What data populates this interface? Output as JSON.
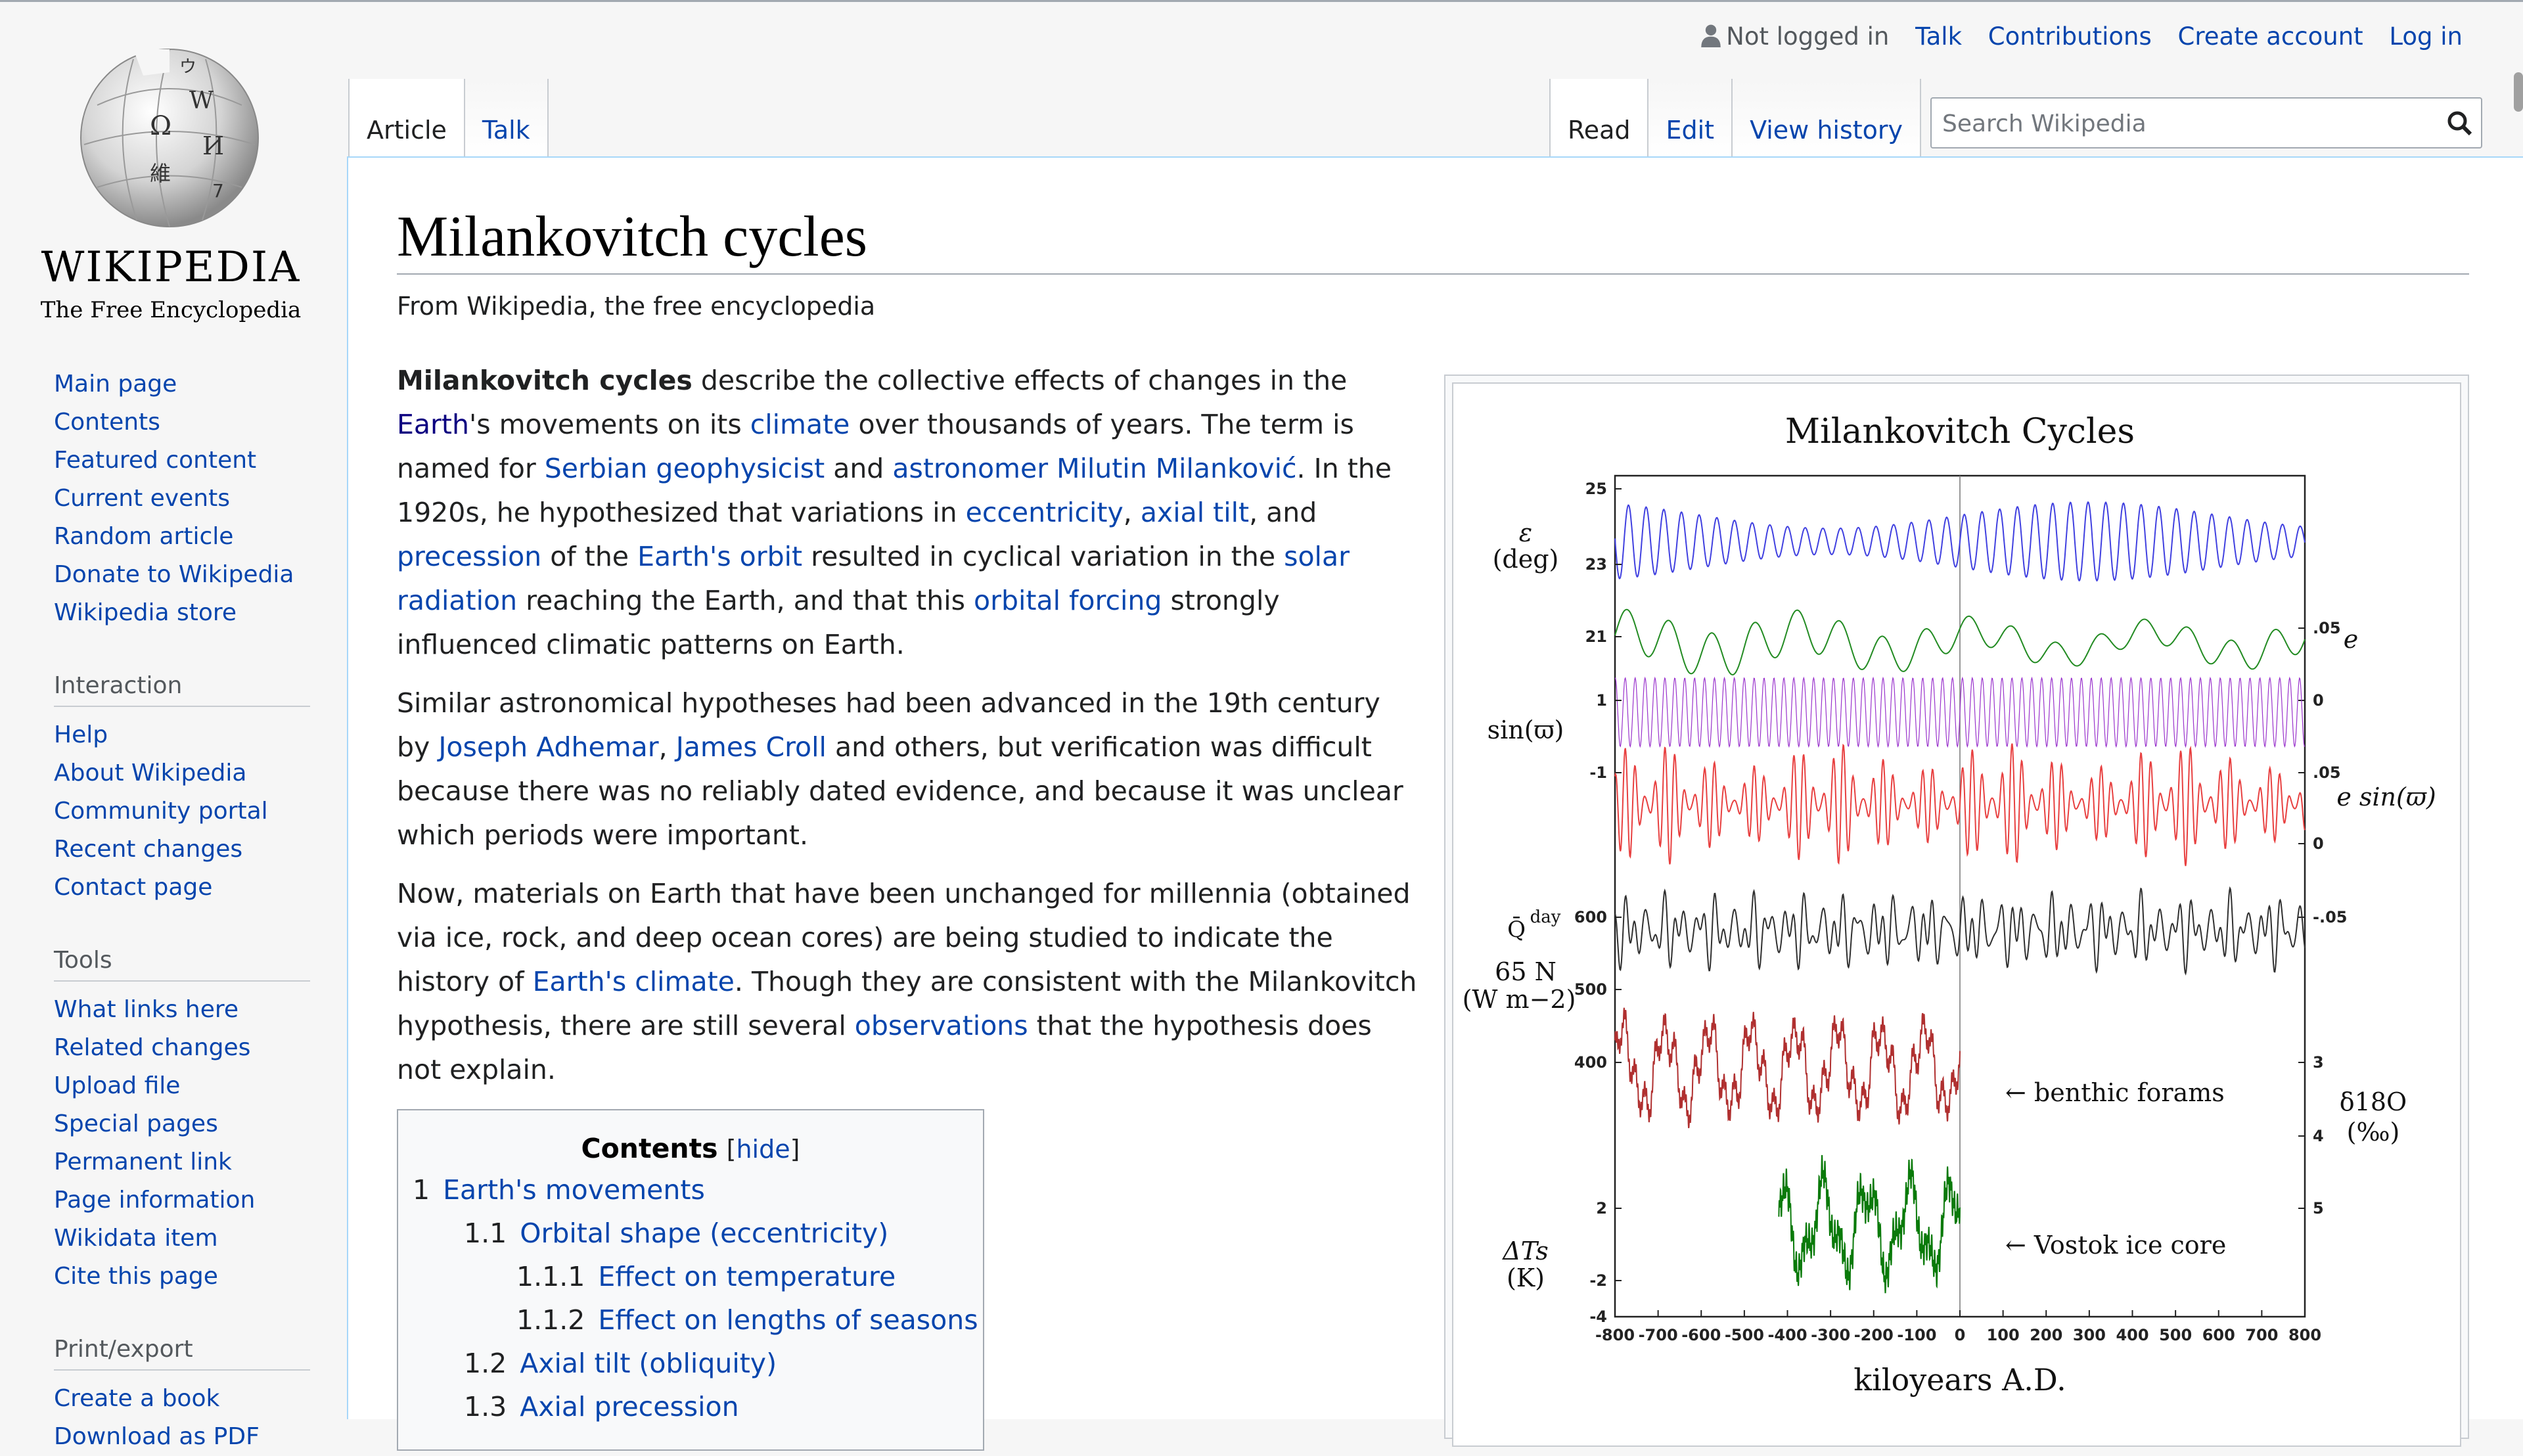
{
  "logo": {
    "wordmark": "WIKIPEDIA",
    "tagline": "The Free Encyclopedia",
    "globe_glyphs": [
      "Ω",
      "W",
      "И",
      "維",
      "ウ",
      "7"
    ]
  },
  "personal": {
    "user": "Not logged in",
    "talk": "Talk",
    "contributions": "Contributions",
    "create_account": "Create account",
    "log_in": "Log in"
  },
  "tabs": {
    "left": [
      "Article",
      "Talk"
    ],
    "right": [
      "Read",
      "Edit",
      "View history"
    ]
  },
  "search": {
    "placeholder": "Search Wikipedia"
  },
  "sidebar": {
    "nav": [
      "Main page",
      "Contents",
      "Featured content",
      "Current events",
      "Random article",
      "Donate to Wikipedia",
      "Wikipedia store"
    ],
    "interaction": {
      "heading": "Interaction",
      "items": [
        "Help",
        "About Wikipedia",
        "Community portal",
        "Recent changes",
        "Contact page"
      ]
    },
    "tools": {
      "heading": "Tools",
      "items": [
        "What links here",
        "Related changes",
        "Upload file",
        "Special pages",
        "Permanent link",
        "Page information",
        "Wikidata item",
        "Cite this page"
      ]
    },
    "print": {
      "heading": "Print/export",
      "items": [
        "Create a book",
        "Download as PDF"
      ]
    }
  },
  "article": {
    "title": "Milankovitch cycles",
    "site_sub": "From Wikipedia, the free encyclopedia",
    "p1": {
      "bold": "Milankovitch cycles",
      "t1": " describe the collective effects of changes in the ",
      "l_earth": "Earth",
      "t2": "'s movements on its ",
      "l_climate": "climate",
      "t3": " over thousands of years. The term is named for ",
      "l_serbian": "Serbian geophysicist",
      "t4": " and ",
      "l_astronomer": "astronomer Milutin Milanković",
      "t5": ". In the 1920s, he hypothesized that variations in ",
      "l_ecc": "eccentricity",
      "t6": ", ",
      "l_axial": "axial tilt",
      "t7": ", and ",
      "l_prec": "precession",
      "t8": " of the ",
      "l_orbit": "Earth's orbit",
      "t9": " resulted in cyclical variation in the ",
      "l_solar": "solar radiation",
      "t10": " reaching the Earth, and that this ",
      "l_forcing": "orbital forcing",
      "t11": " strongly influenced climatic patterns on Earth."
    },
    "p2": {
      "t1": "Similar astronomical hypotheses had been advanced in the 19th century by ",
      "l_adhemar": "Joseph Adhemar",
      "t2": ", ",
      "l_croll": "James Croll",
      "t3": " and others, but verification was difficult because there was no reliably dated evidence, and because it was unclear which periods were important."
    },
    "p3": {
      "t1": "Now, materials on Earth that have been unchanged for millennia (obtained via ice, rock, and deep ocean cores) are being studied to indicate the history of ",
      "l_climate": "Earth's climate",
      "t2": ". Though they are consistent with the Milankovitch hypothesis, there are still several ",
      "l_obs": "observations",
      "t3": " that the hypothesis does not explain."
    }
  },
  "toc": {
    "title": "Contents",
    "toggle_open": "[",
    "toggle": "hide",
    "toggle_close": "]",
    "items": [
      {
        "num": "1",
        "label": "Earth's movements",
        "level": 1
      },
      {
        "num": "1.1",
        "label": "Orbital shape (eccentricity)",
        "level": 2
      },
      {
        "num": "1.1.1",
        "label": "Effect on temperature",
        "level": 3
      },
      {
        "num": "1.1.2",
        "label": "Effect on lengths of seasons",
        "level": 3
      },
      {
        "num": "1.2",
        "label": "Axial tilt (obliquity)",
        "level": 2
      },
      {
        "num": "1.3",
        "label": "Axial precession",
        "level": 2
      }
    ]
  },
  "chart_data": {
    "type": "line",
    "title": "Milankovitch Cycles",
    "xlabel": "kiloyears A.D.",
    "xlim": [
      -800,
      800
    ],
    "x_ticks": [
      "-800",
      "-700",
      "-600",
      "-500",
      "-400",
      "-300",
      "-200",
      "-100",
      "0",
      "100",
      "200",
      "300",
      "400",
      "500",
      "600",
      "700",
      "800"
    ],
    "series": [
      {
        "name": "ε (deg)",
        "color": "#4040e0",
        "range_start": -800,
        "range_end": 800,
        "period_kyr": 41,
        "ylim": [
          21,
          25
        ],
        "axis": "left",
        "tick_labels": [
          "25",
          "23",
          "21"
        ]
      },
      {
        "name": "e",
        "color": "#228b22",
        "range_start": -800,
        "range_end": 800,
        "period_kyr": 100,
        "ylim": [
          0,
          0.05
        ],
        "axis": "right",
        "tick_labels": [
          ".05",
          "0"
        ]
      },
      {
        "name": "sin(ϖ)",
        "color": "#9932cc",
        "range_start": -800,
        "range_end": 800,
        "period_kyr": 23,
        "ylim": [
          -1,
          1
        ],
        "axis": "left",
        "tick_labels": [
          "1",
          "-1"
        ]
      },
      {
        "name": "e sin(ϖ)",
        "color": "#e84040",
        "range_start": -800,
        "range_end": 800,
        "period_kyr": 23,
        "ylim": [
          -0.05,
          0.05
        ],
        "axis": "right",
        "tick_labels": [
          ".05",
          "0",
          "-.05"
        ]
      },
      {
        "name": "Q̄day 65 N (W m−2)",
        "color": "#303030",
        "range_start": -800,
        "range_end": 800,
        "period_kyr": 23,
        "ylim": [
          400,
          600
        ],
        "axis": "left",
        "tick_labels": [
          "600",
          "500",
          "400"
        ]
      },
      {
        "name": "benthic forams",
        "axis_label": "δ18O (‰)",
        "color": "#b03030",
        "range_start": -800,
        "range_end": 0,
        "ylim": [
          3,
          5
        ],
        "axis": "right",
        "tick_labels": [
          "3",
          "4",
          "5"
        ]
      },
      {
        "name": "Vostok ice core",
        "axis_label": "ΔTs (K)",
        "color": "#0a7a0a",
        "range_start": -420,
        "range_end": 0,
        "ylim": [
          -4,
          2
        ],
        "axis": "left",
        "tick_labels": [
          "2",
          "-2",
          "-4"
        ]
      }
    ],
    "annotations": [
      "← benthic forams",
      "← Vostok ice core"
    ],
    "left_labels": [
      "ε",
      "(deg)",
      "sin(ϖ)",
      "Q̄",
      "day",
      "65 N",
      "(W m−2)",
      "ΔTs",
      "(K)"
    ],
    "right_labels": [
      "e",
      "e sin(ϖ)",
      "δ18O",
      "(‰)"
    ]
  }
}
